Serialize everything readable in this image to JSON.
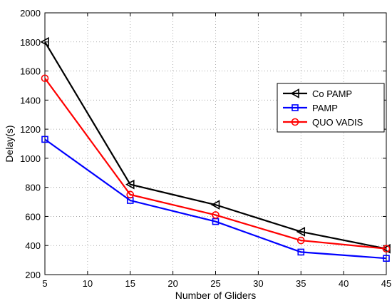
{
  "chart_data": {
    "type": "line",
    "x": [
      5,
      15,
      25,
      35,
      45
    ],
    "xlabel": "Number of Gliders",
    "ylabel": "Delay(s)",
    "xlim": [
      5,
      45
    ],
    "ylim": [
      200,
      2000
    ],
    "xticks": [
      "5",
      "10",
      "15",
      "20",
      "25",
      "30",
      "35",
      "40",
      "45"
    ],
    "yticks": [
      "200",
      "400",
      "600",
      "800",
      "1000",
      "1200",
      "1400",
      "1600",
      "1800",
      "2000"
    ],
    "grid": true,
    "legend_position": "right",
    "series": [
      {
        "name": "Co PAMP",
        "values": [
          1800,
          820,
          680,
          495,
          378
        ],
        "color": "#000000",
        "marker": "triangle-left"
      },
      {
        "name": "PAMP",
        "values": [
          1130,
          710,
          565,
          355,
          312
        ],
        "color": "#0000ff",
        "marker": "square"
      },
      {
        "name": "QUO VADIS",
        "values": [
          1550,
          750,
          610,
          435,
          378
        ],
        "color": "#ff0000",
        "marker": "circle"
      }
    ]
  }
}
